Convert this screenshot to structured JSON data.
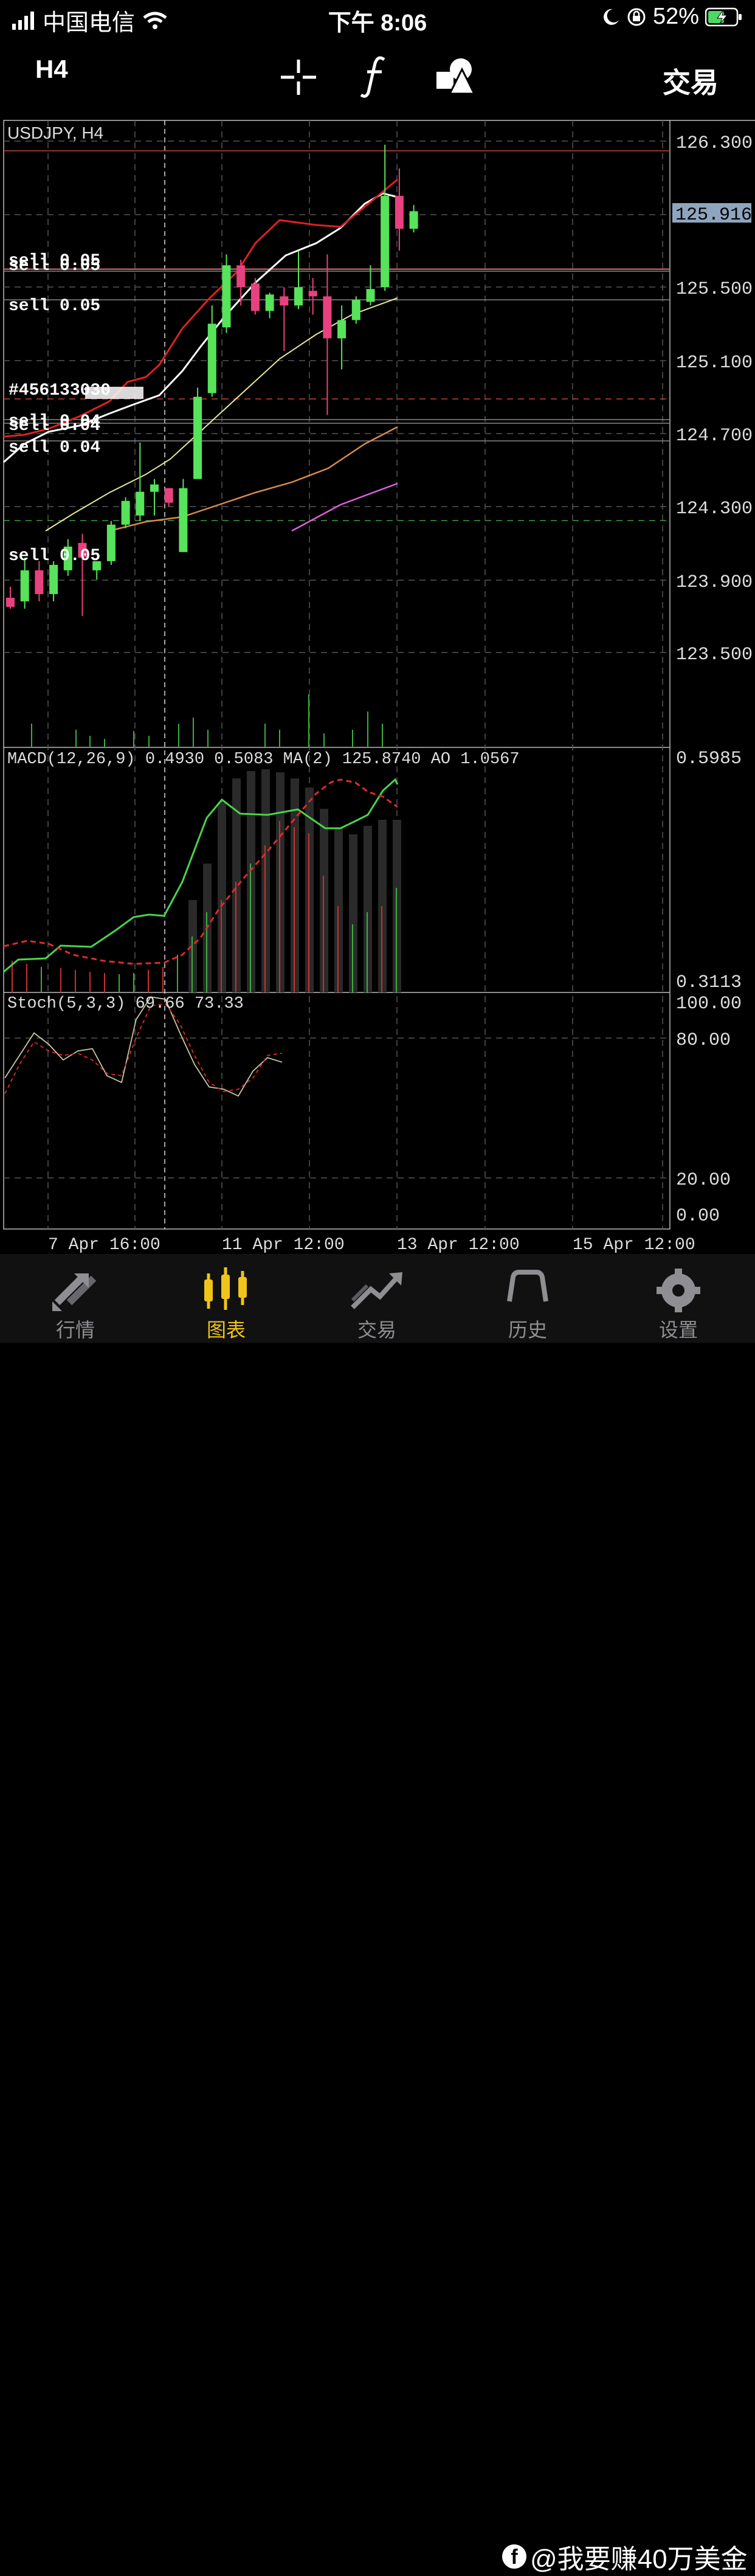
{
  "status_bar": {
    "carrier": "中国电信",
    "time": "下午 8:06",
    "battery": "52%"
  },
  "toolbar": {
    "timeframe": "H4",
    "trade": "交易",
    "icons": [
      "crosshair-icon",
      "function-icon",
      "objects-icon"
    ]
  },
  "chart": {
    "title": "USDJPY, H4",
    "price_labels": [
      "126.300",
      "125.500",
      "125.100",
      "124.700",
      "124.300",
      "123.900",
      "123.500"
    ],
    "current_price": "125.916",
    "trade_labels": [
      "sell 0.05",
      "sell 0.05",
      "sell 0.05",
      "#456133030",
      "sell 0.04",
      "sell 0.04",
      "sell 0.04",
      "sell 0.05"
    ],
    "macd_label": "MACD(12,26,9) 0.4930 0.5083 MA(2) 125.8740 AO 1.0567",
    "macd_scale": [
      "0.5985",
      "0.3113"
    ],
    "stoch_label": "Stoch(5,3,3) 69.66 73.33",
    "stoch_scale": [
      "100.00",
      "80.00",
      "20.00",
      "0.00"
    ],
    "time_labels": [
      "7 Apr 16:00",
      "11 Apr 12:00",
      "13 Apr 12:00",
      "15 Apr 12:00"
    ],
    "colors": {
      "bull": "#57e35a",
      "bear": "#e8417f",
      "ma_fast": "#e02020",
      "ma_slow": "#ffffff",
      "ma_yellow": "#e8e89a",
      "ma_orange": "#d98a4a",
      "ma_pink": "#e060e0",
      "macd": "#4ad44a",
      "signal": "#e02a2a"
    }
  },
  "chart_data": {
    "type": "candlestick",
    "symbol": "USDJPY",
    "timeframe": "H4",
    "ylim": [
      123.0,
      126.4
    ],
    "candles": [
      {
        "o": 123.8,
        "h": 123.86,
        "l": 123.74,
        "c": 123.75
      },
      {
        "o": 123.78,
        "h": 124.02,
        "l": 123.74,
        "c": 123.95
      },
      {
        "o": 123.95,
        "h": 124.0,
        "l": 123.78,
        "c": 123.82
      },
      {
        "o": 123.82,
        "h": 124.0,
        "l": 123.78,
        "c": 123.98
      },
      {
        "o": 123.95,
        "h": 124.12,
        "l": 123.92,
        "c": 124.08
      },
      {
        "o": 124.1,
        "h": 124.15,
        "l": 123.7,
        "c": 124.02
      },
      {
        "o": 123.95,
        "h": 124.0,
        "l": 123.9,
        "c": 124.0
      },
      {
        "o": 124.0,
        "h": 124.22,
        "l": 123.98,
        "c": 124.2
      },
      {
        "o": 124.2,
        "h": 124.35,
        "l": 124.18,
        "c": 124.33
      },
      {
        "o": 124.25,
        "h": 124.65,
        "l": 124.22,
        "c": 124.38
      },
      {
        "o": 124.38,
        "h": 124.45,
        "l": 124.25,
        "c": 124.42
      },
      {
        "o": 124.4,
        "h": 124.4,
        "l": 124.3,
        "c": 124.32
      },
      {
        "o": 124.05,
        "h": 124.45,
        "l": 124.05,
        "c": 124.4
      },
      {
        "o": 124.45,
        "h": 124.95,
        "l": 124.45,
        "c": 124.9
      },
      {
        "o": 124.92,
        "h": 125.4,
        "l": 124.9,
        "c": 125.3
      },
      {
        "o": 125.28,
        "h": 125.68,
        "l": 125.25,
        "c": 125.62
      },
      {
        "o": 125.62,
        "h": 125.65,
        "l": 125.4,
        "c": 125.5
      },
      {
        "o": 125.52,
        "h": 125.55,
        "l": 125.35,
        "c": 125.37
      },
      {
        "o": 125.37,
        "h": 125.47,
        "l": 125.33,
        "c": 125.46
      },
      {
        "o": 125.45,
        "h": 125.5,
        "l": 125.15,
        "c": 125.4
      },
      {
        "o": 125.4,
        "h": 125.7,
        "l": 125.38,
        "c": 125.5
      },
      {
        "o": 125.48,
        "h": 125.55,
        "l": 125.35,
        "c": 125.45
      },
      {
        "o": 125.45,
        "h": 125.68,
        "l": 124.8,
        "c": 125.22
      },
      {
        "o": 125.22,
        "h": 125.4,
        "l": 125.05,
        "c": 125.32
      },
      {
        "o": 125.32,
        "h": 125.45,
        "l": 125.3,
        "c": 125.43
      },
      {
        "o": 125.42,
        "h": 125.62,
        "l": 125.4,
        "c": 125.49
      },
      {
        "o": 125.5,
        "h": 126.28,
        "l": 125.48,
        "c": 126.0
      },
      {
        "o": 126.0,
        "h": 126.15,
        "l": 125.7,
        "c": 125.82
      },
      {
        "o": 125.82,
        "h": 125.95,
        "l": 125.8,
        "c": 125.916
      }
    ],
    "stoch_k": [
      62,
      72,
      82,
      77,
      70,
      74,
      75,
      63,
      60,
      88,
      98,
      97,
      82,
      68,
      58,
      57,
      54,
      65,
      71,
      69
    ],
    "stoch_d": [
      55,
      68,
      78,
      74,
      72,
      73,
      70,
      64,
      63,
      80,
      94,
      95,
      86,
      72,
      60,
      56,
      57,
      62,
      72,
      73
    ]
  },
  "tabs": [
    {
      "label": "行情",
      "active": false
    },
    {
      "label": "图表",
      "active": true
    },
    {
      "label": "交易",
      "active": false
    },
    {
      "label": "历史",
      "active": false
    },
    {
      "label": "设置",
      "active": false
    }
  ],
  "watermark": "@我要赚40万美金"
}
